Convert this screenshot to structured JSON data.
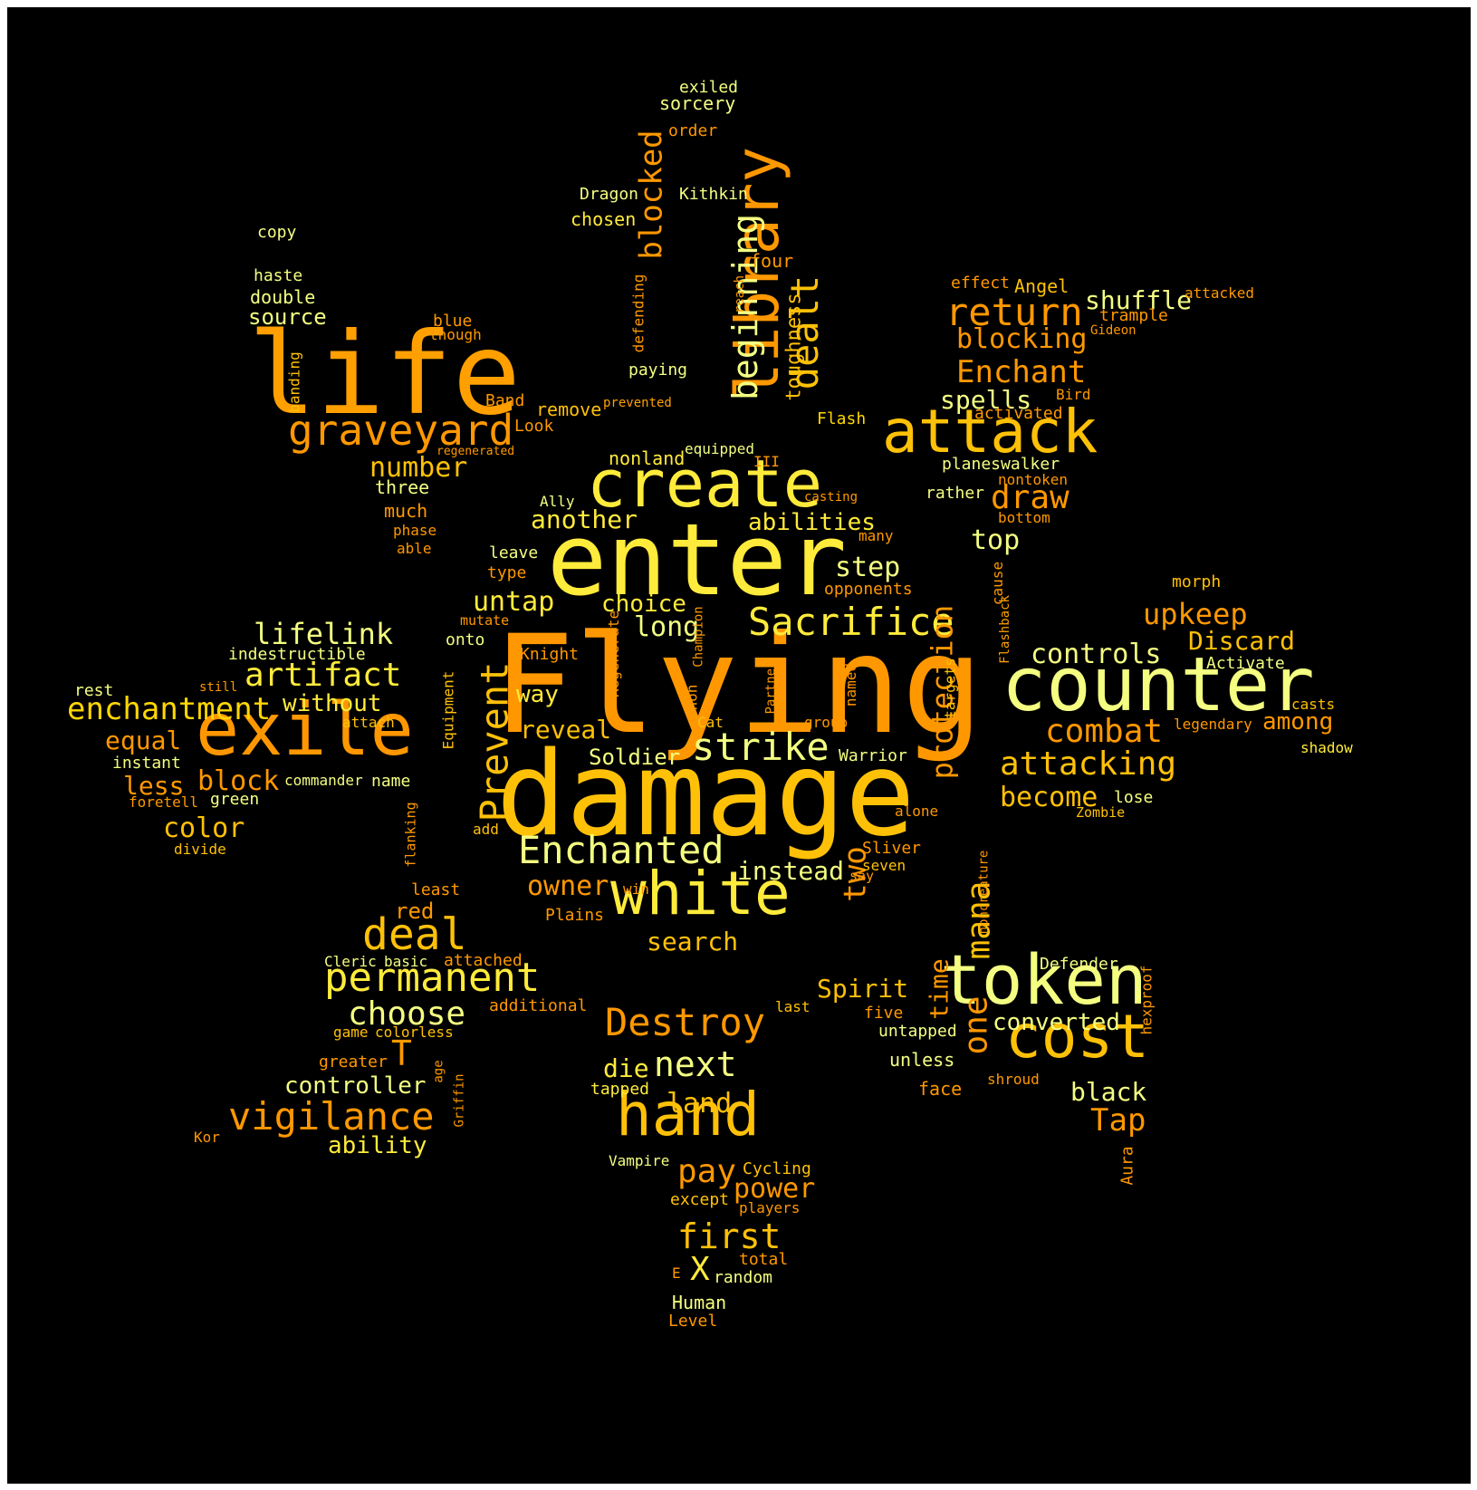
{
  "background": "#000000",
  "palette": [
    "#ff8c00",
    "#ffa500",
    "#ffc107",
    "#ffd700",
    "#ffeb3b",
    "#f4ff81",
    "#f0f4c3"
  ],
  "words": [
    "Flying",
    "damage",
    "enter",
    "counter",
    "life",
    "token",
    "create",
    "exile",
    "attack",
    "white",
    "library",
    "cost",
    "hand",
    "graveyard",
    "Sacrifice",
    "strike",
    "Enchanted",
    "deal",
    "permanent",
    "Destroy",
    "beginning",
    "dealt",
    "return",
    "Prevent",
    "vigilance",
    "artifact",
    "enchantment",
    "combat",
    "attacking",
    "choose",
    "next",
    "first",
    "blocked",
    "mana",
    "toughness",
    "draw",
    "Enchant",
    "upkeep",
    "protection",
    "pay",
    "owner",
    "blocking",
    "lifelink",
    "shuffle",
    "spells",
    "two",
    "one",
    "time",
    "Tap",
    "X",
    "untap",
    "step",
    "long",
    "choice",
    "abilities",
    "another",
    "number",
    "top",
    "controls",
    "Discard",
    "become",
    "search",
    "instead",
    "reveal",
    "power",
    "land",
    "block",
    "color",
    "less",
    "equal",
    "without",
    "controller",
    "ability",
    "Spirit",
    "converted",
    "black",
    "T",
    "die",
    "Soldier",
    "source",
    "double",
    "haste",
    "copy",
    "red",
    "way",
    "three",
    "sorcery",
    "exiled",
    "order",
    "Dragon",
    "Kithkin",
    "chosen",
    "four",
    "effect",
    "Angel",
    "attacked",
    "trample",
    "Gideon",
    "Band",
    "remove",
    "Look",
    "prevented",
    "regenerated",
    "Flash",
    "activated",
    "Bird",
    "nonland",
    "equipped",
    "III",
    "planeswalker",
    "nontoken",
    "rather",
    "bottom",
    "casting",
    "Ally",
    "much",
    "phase",
    "able",
    "leave",
    "type",
    "many",
    "opponents",
    "morph",
    "cause",
    "Flashback",
    "mutate",
    "onto",
    "Knight",
    "Regenerate",
    "Champion",
    "non",
    "Partner",
    "named",
    "targets",
    "Activate",
    "legendary",
    "among",
    "casts",
    "shadow",
    "indestructible",
    "rest",
    "still",
    "attach",
    "instant",
    "commander",
    "name",
    "foretell",
    "green",
    "divide",
    "flanking",
    "add",
    "Equipment",
    "Cat",
    "group",
    "Warrior",
    "alone",
    "lose",
    "Zombie",
    "Sliver",
    "seven",
    "say",
    "win",
    "least",
    "Plains",
    "noncreature",
    "Cleric",
    "basic",
    "attached",
    "additional",
    "game",
    "colorless",
    "greater",
    "age",
    "Griffin",
    "Kor",
    "tapped",
    "Vampire",
    "Cycling",
    "except",
    "players",
    "total",
    "random",
    "E",
    "Human",
    "Level",
    "last",
    "five",
    "untapped",
    "unless",
    "face",
    "shroud",
    "Defender",
    "hexproof",
    "Aura",
    "blue",
    "though",
    "defending",
    "reach",
    "banding",
    "paying"
  ]
}
